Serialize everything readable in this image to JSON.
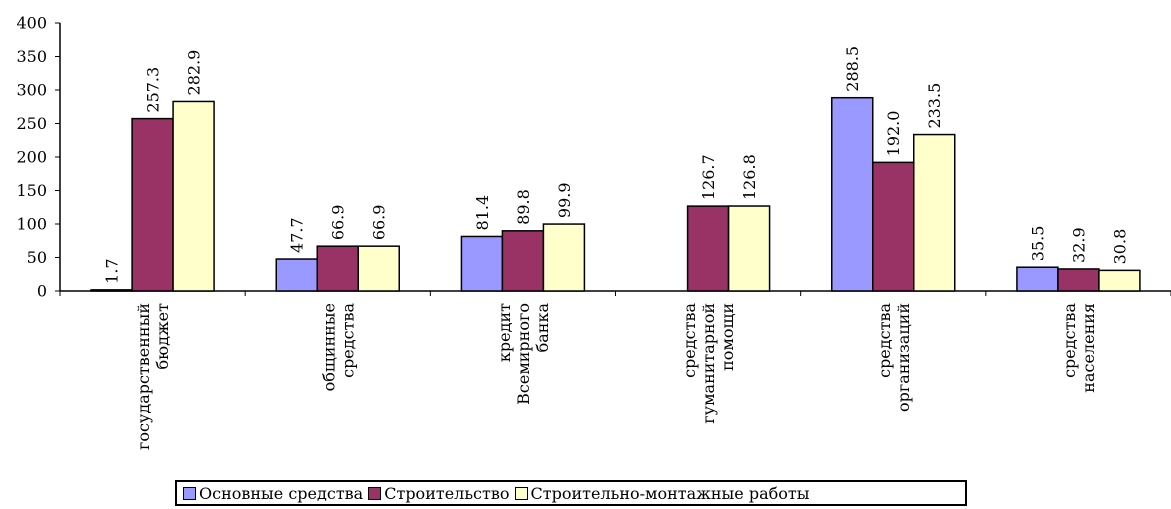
{
  "chart_data": {
    "type": "bar",
    "categories": [
      [
        "государственный",
        "бюджет"
      ],
      [
        "общинные",
        "средства"
      ],
      [
        "кредит",
        "Всемирного",
        "банка"
      ],
      [
        "средства",
        "гуманитарной",
        "помощи"
      ],
      [
        "средства",
        "организаций"
      ],
      [
        "средства",
        "населения"
      ]
    ],
    "series": [
      {
        "name": "Основные средства",
        "color": "#9999FF",
        "values": [
          1.7,
          47.7,
          81.4,
          null,
          288.5,
          35.5
        ]
      },
      {
        "name": "Строительство",
        "color": "#993366",
        "values": [
          257.3,
          66.9,
          89.8,
          126.7,
          192.0,
          32.9
        ]
      },
      {
        "name": "Строительно-монтажные работы",
        "color": "#FFFFCC",
        "values": [
          282.9,
          66.9,
          99.9,
          126.8,
          233.5,
          30.8
        ]
      }
    ],
    "ylim": [
      0,
      400
    ],
    "yticks": [
      0,
      50,
      100,
      150,
      200,
      250,
      300,
      350,
      400
    ],
    "xlabel": "",
    "ylabel": "",
    "grid": false,
    "legend_position": "bottom"
  }
}
